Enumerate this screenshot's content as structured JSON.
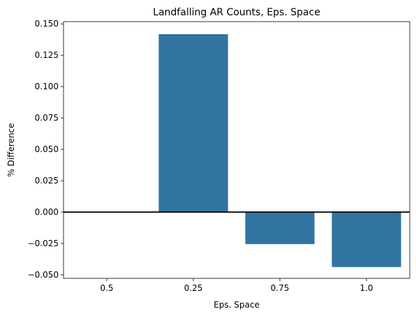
{
  "chart_data": {
    "type": "bar",
    "title": "Landfalling AR Counts, Eps. Space",
    "xlabel": "Eps. Space",
    "ylabel": "% Difference",
    "categories": [
      "0.5",
      "0.25",
      "0.75",
      "1.0"
    ],
    "values": [
      0.0,
      0.1418,
      -0.0255,
      -0.0438
    ],
    "ylim": [
      -0.0528,
      0.1518
    ],
    "yticks": [
      -0.05,
      -0.025,
      0.0,
      0.025,
      0.05,
      0.075,
      0.1,
      0.125,
      0.15
    ],
    "ytick_labels": [
      "−0.050",
      "−0.025",
      "0.000",
      "0.025",
      "0.050",
      "0.075",
      "0.100",
      "0.125",
      "0.150"
    ],
    "zero_line": true,
    "grid": false,
    "legend": "none",
    "bar_color": "#3274a1",
    "zero_line_color": "#000000"
  }
}
